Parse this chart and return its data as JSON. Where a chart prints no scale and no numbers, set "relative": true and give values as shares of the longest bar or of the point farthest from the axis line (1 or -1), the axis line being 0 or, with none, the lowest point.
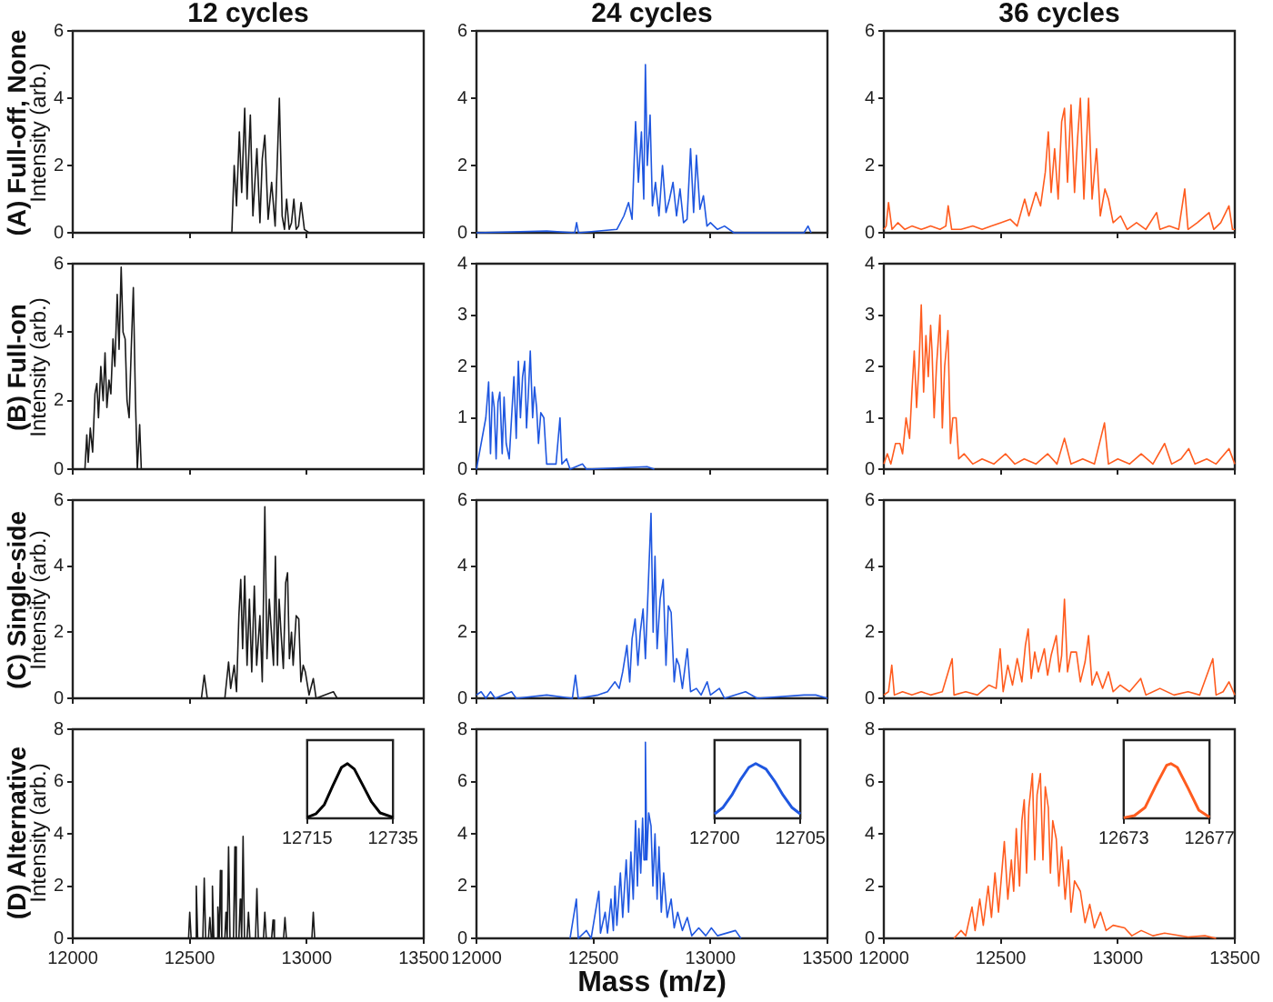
{
  "chart_data": [
    {
      "type": "line",
      "title": "12 cycles",
      "subtitle": "(A) Full-off, None",
      "ylabel": "Intensity (arb.)",
      "tick_labels": "y",
      "xlim": [
        12000,
        13500
      ],
      "xticks": [
        12000,
        12500,
        13000,
        13500
      ],
      "ylim": [
        0,
        6
      ],
      "yticks": [
        0,
        2,
        4,
        6
      ],
      "x": [
        12000,
        12680,
        12690,
        12700,
        12712,
        12722,
        12735,
        12745,
        12759,
        12770,
        12787,
        12800,
        12810,
        12821,
        12835,
        12850,
        12865,
        12883,
        12895,
        12905,
        12914,
        12925,
        12935,
        12945,
        12955,
        12965,
        12976,
        12990,
        13010,
        13500
      ],
      "series": [
        {
          "color": "#1a1a1a",
          "values": [
            0,
            0,
            2.0,
            0.8,
            3.0,
            1.2,
            3.7,
            1.0,
            3.5,
            0.5,
            2.5,
            0.3,
            2.2,
            2.9,
            0.4,
            1.5,
            0.2,
            4.0,
            0.5,
            0.1,
            1.0,
            0.1,
            0.3,
            1.0,
            0.1,
            0.2,
            0.9,
            0.1,
            0,
            0
          ]
        }
      ]
    },
    {
      "type": "line",
      "title": "24 cycles",
      "tick_labels": "y",
      "xlim": [
        12000,
        13500
      ],
      "xticks": [
        12000,
        12500,
        13000,
        13500
      ],
      "ylim": [
        0,
        6
      ],
      "yticks": [
        0,
        2,
        4,
        6
      ],
      "x": [
        12000,
        12300,
        12420,
        12428,
        12436,
        12600,
        12630,
        12650,
        12665,
        12680,
        12692,
        12705,
        12715,
        12722,
        12730,
        12742,
        12752,
        12765,
        12780,
        12795,
        12810,
        12825,
        12840,
        12855,
        12870,
        12885,
        12900,
        12915,
        12928,
        12940,
        12955,
        12970,
        12985,
        13000,
        13030,
        13060,
        13100,
        13400,
        13417,
        13430
      ],
      "series": [
        {
          "color": "#1f57e0",
          "values": [
            0,
            0.05,
            0,
            0.3,
            0,
            0.1,
            0.5,
            0.9,
            0.4,
            3.3,
            1.5,
            3.0,
            1.0,
            5.0,
            2.0,
            3.5,
            0.8,
            1.5,
            0.5,
            2.0,
            0.6,
            1.0,
            1.5,
            0.5,
            1.3,
            0.3,
            0.4,
            2.5,
            0.6,
            2.3,
            0.7,
            1.1,
            0.2,
            0.3,
            0.1,
            0.2,
            0,
            0,
            0.2,
            0
          ]
        }
      ]
    },
    {
      "type": "line",
      "title": "36 cycles",
      "tick_labels": "y",
      "xlim": [
        12000,
        13500
      ],
      "xticks": [
        12000,
        12500,
        13000,
        13500
      ],
      "ylim": [
        0,
        6
      ],
      "yticks": [
        0,
        2,
        4,
        6
      ],
      "x": [
        12000,
        12010,
        12020,
        12035,
        12060,
        12090,
        12120,
        12160,
        12200,
        12240,
        12265,
        12275,
        12290,
        12330,
        12380,
        12420,
        12460,
        12500,
        12540,
        12570,
        12602,
        12620,
        12650,
        12670,
        12690,
        12703,
        12715,
        12730,
        12745,
        12760,
        12772,
        12785,
        12800,
        12815,
        12828,
        12840,
        12855,
        12865,
        12875,
        12890,
        12909,
        12925,
        12945,
        12960,
        12980,
        13012,
        13040,
        13080,
        13120,
        13166,
        13180,
        13220,
        13260,
        13286,
        13300,
        13340,
        13390,
        13410,
        13440,
        13475,
        13490,
        13500
      ],
      "series": [
        {
          "color": "#ff5c1f",
          "values": [
            0.1,
            0.2,
            0.9,
            0.1,
            0.3,
            0.1,
            0.2,
            0.1,
            0.2,
            0.1,
            0.2,
            0.8,
            0.1,
            0.1,
            0.2,
            0.1,
            0.2,
            0.3,
            0.4,
            0.2,
            1.0,
            0.5,
            1.2,
            0.8,
            1.8,
            3.0,
            1.2,
            2.5,
            1.0,
            3.3,
            3.7,
            1.5,
            3.8,
            1.2,
            2.8,
            4.0,
            1.0,
            2.5,
            4.0,
            1.0,
            2.5,
            0.5,
            1.3,
            1.0,
            0.3,
            0.5,
            0.1,
            0.3,
            0.1,
            0.6,
            0.1,
            0.2,
            0.1,
            1.3,
            0.1,
            0.3,
            0.6,
            0.1,
            0.3,
            0.8,
            0.1,
            0.1
          ]
        }
      ]
    },
    {
      "type": "line",
      "subtitle": "(B) Full-on",
      "ylabel": "Intensity (arb.)",
      "tick_labels": "y",
      "xlim": [
        12000,
        13500
      ],
      "xticks": [
        12000,
        12500,
        13000,
        13500
      ],
      "ylim": [
        0,
        6
      ],
      "yticks": [
        0,
        2,
        4,
        6
      ],
      "x": [
        12000,
        12052,
        12060,
        12066,
        12075,
        12085,
        12095,
        12103,
        12110,
        12120,
        12130,
        12138,
        12146,
        12155,
        12163,
        12172,
        12180,
        12190,
        12198,
        12207,
        12215,
        12224,
        12232,
        12241,
        12250,
        12259,
        12268,
        12276,
        12286,
        12293,
        13500
      ],
      "series": [
        {
          "color": "#1a1a1a",
          "values": [
            0,
            0,
            1.0,
            0.2,
            1.2,
            0.5,
            2.2,
            2.5,
            1.5,
            3.0,
            2.0,
            3.4,
            1.8,
            2.6,
            2.2,
            3.8,
            3.0,
            5.1,
            3.5,
            5.9,
            4.0,
            3.8,
            2.0,
            1.5,
            3.5,
            5.3,
            2.0,
            0,
            1.3,
            0,
            0
          ]
        }
      ]
    },
    {
      "type": "line",
      "tick_labels": "y",
      "xlim": [
        12000,
        13500
      ],
      "xticks": [
        12000,
        12500,
        13000,
        13500
      ],
      "ylim": [
        0,
        4
      ],
      "yticks": [
        0,
        1,
        2,
        3,
        4
      ],
      "x": [
        12000,
        12040,
        12052,
        12060,
        12068,
        12076,
        12084,
        12092,
        12100,
        12110,
        12118,
        12127,
        12140,
        12150,
        12160,
        12170,
        12179,
        12188,
        12197,
        12206,
        12214,
        12222,
        12230,
        12240,
        12248,
        12257,
        12265,
        12275,
        12288,
        12300,
        12340,
        12357,
        12365,
        12385,
        12400,
        12453,
        12470,
        12729,
        12760
      ],
      "series": [
        {
          "color": "#1f57e0",
          "values": [
            0,
            1.0,
            1.7,
            0.3,
            1.5,
            1.2,
            0.2,
            1.3,
            1.5,
            0.3,
            1.4,
            0.5,
            0.2,
            1.0,
            1.8,
            0.6,
            2.1,
            1.0,
            1.8,
            2.1,
            0.8,
            1.5,
            2.3,
            1.0,
            1.6,
            1.2,
            0.5,
            1.1,
            1.0,
            0.1,
            0.1,
            1.0,
            0.1,
            0.2,
            0,
            0.1,
            0,
            0.05,
            0
          ]
        }
      ]
    },
    {
      "type": "line",
      "tick_labels": "y",
      "xlim": [
        12000,
        13500
      ],
      "xticks": [
        12000,
        12500,
        13000,
        13500
      ],
      "ylim": [
        0,
        4
      ],
      "yticks": [
        0,
        1,
        2,
        3,
        4
      ],
      "x": [
        12000,
        12015,
        12030,
        12050,
        12069,
        12080,
        12095,
        12110,
        12120,
        12130,
        12140,
        12150,
        12160,
        12170,
        12180,
        12190,
        12200,
        12206,
        12215,
        12225,
        12240,
        12250,
        12260,
        12274,
        12285,
        12295,
        12309,
        12320,
        12343,
        12380,
        12420,
        12470,
        12520,
        12560,
        12600,
        12650,
        12700,
        12740,
        12772,
        12800,
        12850,
        12900,
        12943,
        12960,
        13000,
        13050,
        13100,
        13150,
        13200,
        13230,
        13270,
        13303,
        13330,
        13380,
        13420,
        13475,
        13500
      ],
      "series": [
        {
          "color": "#ff5c1f",
          "values": [
            0.1,
            0.3,
            0.1,
            0.5,
            0.5,
            0.3,
            1.0,
            0.6,
            1.5,
            2.3,
            1.2,
            2.0,
            3.2,
            1.5,
            2.6,
            1.8,
            2.8,
            2.3,
            1.0,
            2.0,
            3.0,
            0.8,
            2.0,
            2.7,
            0.5,
            1.0,
            1.0,
            0.2,
            0.3,
            0.1,
            0.2,
            0.1,
            0.3,
            0.1,
            0.2,
            0.1,
            0.3,
            0.1,
            0.6,
            0.1,
            0.2,
            0.1,
            0.9,
            0.1,
            0.2,
            0.1,
            0.3,
            0.1,
            0.5,
            0.1,
            0.2,
            0.4,
            0.1,
            0.2,
            0.1,
            0.4,
            0.1
          ]
        }
      ]
    },
    {
      "type": "line",
      "subtitle": "(C) Single-side",
      "ylabel": "Intensity (arb.)",
      "tick_labels": "y",
      "xlim": [
        12000,
        13500
      ],
      "xticks": [
        12000,
        12500,
        13000,
        13500
      ],
      "ylim": [
        0,
        6
      ],
      "yticks": [
        0,
        2,
        4,
        6
      ],
      "x": [
        12000,
        12550,
        12562,
        12575,
        12650,
        12666,
        12675,
        12690,
        12700,
        12710,
        12718,
        12726,
        12735,
        12745,
        12755,
        12765,
        12776,
        12786,
        12800,
        12810,
        12821,
        12830,
        12840,
        12849,
        12858,
        12866,
        12875,
        12882,
        12890,
        12900,
        12910,
        12918,
        12926,
        12935,
        12942,
        12955,
        12966,
        12975,
        12985,
        12994,
        13010,
        13028,
        13040,
        13114,
        13130,
        13500
      ],
      "series": [
        {
          "color": "#1a1a1a",
          "values": [
            0,
            0,
            0.7,
            0,
            0,
            1.1,
            0.3,
            1.0,
            0.2,
            2.5,
            3.6,
            1.5,
            3.7,
            1.0,
            3.0,
            0.8,
            3.4,
            1.0,
            2.5,
            0.5,
            5.8,
            1.2,
            3.0,
            2.0,
            1.0,
            4.3,
            1.0,
            3.0,
            2.0,
            0.9,
            3.5,
            3.8,
            1.2,
            2.0,
            1.0,
            2.5,
            2.4,
            0.5,
            1.0,
            0.8,
            0.1,
            0.6,
            0,
            0.2,
            0,
            0
          ]
        }
      ]
    },
    {
      "type": "line",
      "tick_labels": "y",
      "xlim": [
        12000,
        13500
      ],
      "xticks": [
        12000,
        12500,
        13000,
        13500
      ],
      "ylim": [
        0,
        6
      ],
      "yticks": [
        0,
        2,
        4,
        6
      ],
      "x": [
        12000,
        12020,
        12040,
        12060,
        12080,
        12150,
        12170,
        12300,
        12410,
        12423,
        12435,
        12520,
        12560,
        12592,
        12610,
        12625,
        12643,
        12655,
        12665,
        12678,
        12690,
        12700,
        12712,
        12722,
        12732,
        12746,
        12755,
        12763,
        12772,
        12785,
        12798,
        12810,
        12820,
        12832,
        12845,
        12855,
        12866,
        12880,
        12901,
        12915,
        12940,
        12960,
        12986,
        13000,
        13038,
        13060,
        13150,
        13200,
        13400,
        13450,
        13500
      ],
      "series": [
        {
          "color": "#1f57e0",
          "values": [
            0.1,
            0.2,
            0,
            0.2,
            0,
            0.2,
            0,
            0.1,
            0,
            0.7,
            0,
            0.1,
            0.2,
            0.5,
            0.3,
            0.8,
            1.6,
            0.5,
            1.8,
            2.4,
            1.0,
            2.0,
            2.7,
            1.2,
            3.0,
            5.6,
            2.0,
            4.3,
            1.5,
            3.0,
            3.6,
            1.0,
            2.8,
            2.6,
            0.5,
            1.2,
            1.0,
            0.3,
            1.5,
            0.2,
            0.3,
            0.1,
            0.5,
            0.1,
            0.3,
            0,
            0.2,
            0,
            0.1,
            0.1,
            0
          ]
        }
      ]
    },
    {
      "type": "line",
      "tick_labels": "y",
      "xlim": [
        12000,
        13500
      ],
      "xticks": [
        12000,
        12500,
        13000,
        13500
      ],
      "ylim": [
        0,
        6
      ],
      "yticks": [
        0,
        2,
        4,
        6
      ],
      "x": [
        12000,
        12020,
        12034,
        12045,
        12080,
        12120,
        12160,
        12200,
        12250,
        12292,
        12300,
        12350,
        12400,
        12450,
        12480,
        12497,
        12510,
        12530,
        12550,
        12570,
        12590,
        12605,
        12617,
        12630,
        12645,
        12660,
        12686,
        12700,
        12715,
        12737,
        12750,
        12760,
        12772,
        12785,
        12800,
        12823,
        12840,
        12860,
        12875,
        12890,
        12910,
        12935,
        12960,
        12980,
        13010,
        13050,
        13098,
        13120,
        13180,
        13240,
        13300,
        13350,
        13406,
        13420,
        13450,
        13475,
        13500
      ],
      "series": [
        {
          "color": "#ff5c1f",
          "values": [
            0.1,
            0.2,
            1.0,
            0.1,
            0.2,
            0.1,
            0.2,
            0.1,
            0.2,
            1.2,
            0.1,
            0.2,
            0.1,
            0.4,
            0.3,
            1.5,
            0.2,
            1.0,
            0.4,
            1.2,
            0.5,
            1.6,
            2.1,
            0.6,
            1.4,
            0.8,
            1.5,
            0.7,
            1.3,
            1.9,
            0.8,
            1.3,
            3.0,
            0.8,
            1.4,
            1.4,
            0.5,
            1.1,
            1.9,
            0.4,
            0.8,
            0.3,
            0.8,
            0.2,
            0.4,
            0.2,
            0.6,
            0.1,
            0.3,
            0.1,
            0.2,
            0.1,
            1.2,
            0.1,
            0.2,
            0.5,
            0.1
          ]
        }
      ]
    },
    {
      "type": "line",
      "subtitle": "(D) Alternative",
      "ylabel": "Intensity (arb.)",
      "xlim": [
        12000,
        13500
      ],
      "xticks": [
        12000,
        12500,
        13000,
        13500
      ],
      "ylim": [
        0,
        8
      ],
      "yticks": [
        0,
        2,
        4,
        6,
        8
      ],
      "x": [
        12000,
        12495,
        12500,
        12506,
        12522,
        12528,
        12534,
        12556,
        12562,
        12568,
        12580,
        12586,
        12592,
        12597,
        12603,
        12614,
        12620,
        12626,
        12631,
        12637,
        12650,
        12655,
        12660,
        12666,
        12672,
        12687,
        12693,
        12699,
        12710,
        12716,
        12722,
        12728,
        12734,
        12745,
        12751,
        12757,
        12781,
        12787,
        12793,
        12815,
        12821,
        12827,
        12850,
        12856,
        12862,
        12901,
        12907,
        12913,
        13022,
        13028,
        13034,
        13500
      ],
      "series": [
        {
          "color": "#1a1a1a",
          "values": [
            0,
            0,
            1.0,
            0,
            0,
            2.0,
            0,
            0,
            2.3,
            0,
            0,
            0.8,
            0,
            2.0,
            0,
            0,
            1.2,
            0,
            2.6,
            0,
            0,
            1.0,
            0,
            3.5,
            0,
            0,
            3.5,
            0,
            0,
            1.5,
            0,
            3.9,
            0,
            0,
            1.0,
            0,
            0,
            1.9,
            0,
            0,
            1.0,
            0,
            0,
            0.7,
            0,
            0,
            0.8,
            0,
            0,
            1.0,
            0,
            0
          ]
        }
      ]
    },
    {
      "type": "line",
      "xlabel": "Mass (m/z)",
      "xlim": [
        12000,
        13500
      ],
      "xticks": [
        12000,
        12500,
        13000,
        13500
      ],
      "ylim": [
        0,
        8
      ],
      "yticks": [
        0,
        2,
        4,
        6,
        8
      ],
      "x": [
        12400,
        12427,
        12435,
        12470,
        12490,
        12523,
        12530,
        12550,
        12560,
        12575,
        12585,
        12592,
        12600,
        12615,
        12625,
        12640,
        12650,
        12660,
        12670,
        12680,
        12688,
        12694,
        12702,
        12710,
        12716,
        12722,
        12728,
        12736,
        12746,
        12754,
        12763,
        12772,
        12780,
        12790,
        12800,
        12815,
        12832,
        12845,
        12860,
        12880,
        12901,
        12920,
        12950,
        12980,
        13004,
        13030,
        13107,
        13130
      ],
      "series": [
        {
          "color": "#1f57e0",
          "values": [
            0,
            1.5,
            0,
            0.3,
            0,
            1.8,
            0.2,
            1.0,
            0.2,
            1.5,
            0.3,
            2.0,
            0.5,
            2.5,
            0.8,
            3.0,
            1.0,
            3.3,
            1.5,
            4.5,
            2.0,
            4.2,
            2.5,
            4.6,
            3.0,
            7.5,
            3.0,
            4.8,
            4.3,
            2.0,
            4.0,
            1.5,
            3.5,
            1.0,
            2.5,
            0.8,
            1.5,
            0.4,
            1.0,
            0.3,
            0.8,
            0.1,
            0.4,
            0.1,
            0.4,
            0.1,
            0.3,
            0
          ]
        }
      ]
    },
    {
      "type": "line",
      "xlim": [
        12000,
        13500
      ],
      "xticks": [
        12000,
        12500,
        13000,
        13500
      ],
      "ylim": [
        0,
        8
      ],
      "yticks": [
        0,
        2,
        4,
        6,
        8
      ],
      "x": [
        12300,
        12330,
        12350,
        12377,
        12390,
        12410,
        12425,
        12446,
        12460,
        12475,
        12490,
        12515,
        12530,
        12545,
        12555,
        12566,
        12580,
        12590,
        12600,
        12610,
        12620,
        12635,
        12645,
        12655,
        12669,
        12680,
        12690,
        12703,
        12712,
        12722,
        12737,
        12748,
        12760,
        12775,
        12789,
        12800,
        12815,
        12840,
        12860,
        12880,
        12900,
        12926,
        12950,
        12980,
        13029,
        13060,
        13100,
        13150,
        13200,
        13300,
        13372,
        13420
      ],
      "series": [
        {
          "color": "#ff5c1f",
          "values": [
            0,
            0.3,
            0.1,
            1.2,
            0.3,
            1.5,
            0.5,
            2.0,
            0.8,
            2.5,
            1.0,
            3.7,
            1.5,
            3.0,
            1.8,
            4.2,
            2.0,
            4.5,
            5.3,
            2.5,
            5.0,
            6.3,
            3.0,
            5.5,
            6.3,
            3.0,
            5.8,
            5.0,
            2.5,
            4.5,
            3.8,
            2.0,
            3.5,
            1.5,
            3.0,
            1.0,
            2.2,
            1.8,
            0.6,
            1.3,
            0.4,
            1.0,
            0.3,
            0.5,
            0.4,
            0.1,
            0.3,
            0.1,
            0.2,
            0.05,
            0.1,
            0
          ]
        }
      ]
    },
    {
      "type": "line",
      "relative": true,
      "tick_labels": "x",
      "xlim": [
        12715,
        12735
      ],
      "xticks": [
        12715,
        12735
      ],
      "x": [
        12715,
        12717,
        12719,
        12721,
        12723,
        12724.4,
        12726,
        12728,
        12730,
        12732,
        12735
      ],
      "series": [
        {
          "color": "#000000",
          "values": [
            0.02,
            0.08,
            0.25,
            0.6,
            0.93,
            1,
            0.9,
            0.6,
            0.3,
            0.1,
            0.02
          ]
        }
      ]
    },
    {
      "type": "line",
      "relative": true,
      "tick_labels": "x",
      "xlim": [
        12700,
        12705
      ],
      "xticks": [
        12700,
        12705
      ],
      "x": [
        12700,
        12700.5,
        12701,
        12701.5,
        12702,
        12702.4,
        12703,
        12703.5,
        12704,
        12704.5,
        12705
      ],
      "series": [
        {
          "color": "#1f57e0",
          "values": [
            0.08,
            0.2,
            0.42,
            0.7,
            0.93,
            1,
            0.9,
            0.68,
            0.42,
            0.2,
            0.08
          ]
        }
      ]
    },
    {
      "type": "line",
      "relative": true,
      "tick_labels": "x",
      "xlim": [
        12673,
        12677
      ],
      "xticks": [
        12673,
        12677
      ],
      "x": [
        12673,
        12673.5,
        12674,
        12674.5,
        12675,
        12675.2,
        12675.5,
        12676,
        12676.5,
        12677
      ],
      "series": [
        {
          "color": "#ff5c1f",
          "values": [
            0.01,
            0.05,
            0.2,
            0.6,
            0.97,
            1,
            0.93,
            0.55,
            0.15,
            0.02
          ]
        }
      ]
    }
  ]
}
